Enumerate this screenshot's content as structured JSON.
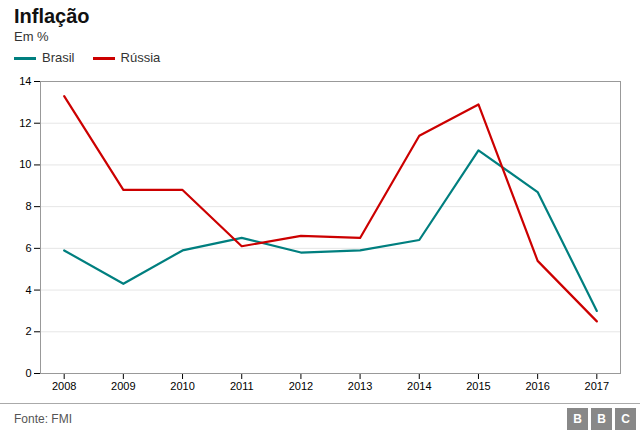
{
  "chart_data": {
    "type": "line",
    "title": "Inflação",
    "subtitle": "Em %",
    "annotations": [
      "Fonte: FMI",
      "BBC"
    ],
    "x": [
      2008,
      2009,
      2010,
      2011,
      2012,
      2013,
      2014,
      2015,
      2016,
      2017
    ],
    "series": [
      {
        "name": "Brasil",
        "color": "#007f7f",
        "values": [
          5.9,
          4.3,
          5.9,
          6.5,
          5.8,
          5.9,
          6.4,
          10.7,
          8.7,
          3.0
        ]
      },
      {
        "name": "Rússia",
        "color": "#cc0000",
        "values": [
          13.3,
          8.8,
          8.8,
          6.1,
          6.6,
          6.5,
          11.4,
          12.9,
          5.4,
          2.5
        ]
      }
    ],
    "xlim": [
      2007.6,
      2017.4
    ],
    "xticks": [
      2008,
      2009,
      2010,
      2011,
      2012,
      2013,
      2014,
      2015,
      2016,
      2017
    ],
    "ylim": [
      0,
      14
    ],
    "yticks": [
      0,
      2,
      4,
      6,
      8,
      10,
      12,
      14
    ],
    "grid": true,
    "legend": "top"
  }
}
